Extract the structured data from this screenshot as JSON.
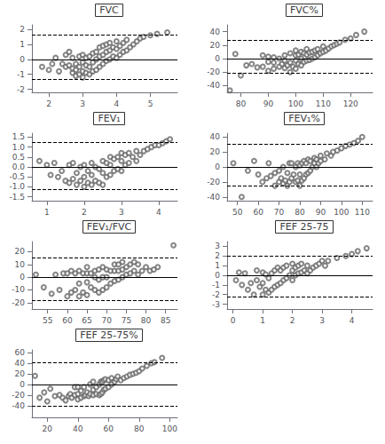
{
  "chart_data": [
    {
      "type": "scatter",
      "title": "FVC",
      "xlim": [
        1.5,
        5.8
      ],
      "ylim": [
        -2.2,
        2.3
      ],
      "xticks": [
        2,
        3,
        4,
        5
      ],
      "yticks": [
        -2,
        -1,
        0,
        1,
        2
      ],
      "color": "#666666",
      "marker": "circle",
      "grid": false,
      "reference_lines": [
        {
          "value": 0.0,
          "line_style": "solid",
          "color": "black"
        },
        {
          "value": 1.65,
          "line_style": "dashed",
          "color": "black"
        },
        {
          "value": -1.35,
          "line_style": "dashed",
          "color": "black"
        }
      ],
      "x": [
        1.8,
        2.0,
        2.1,
        2.2,
        2.3,
        2.4,
        2.5,
        2.5,
        2.6,
        2.6,
        2.7,
        2.7,
        2.7,
        2.8,
        2.8,
        2.8,
        2.9,
        2.9,
        2.9,
        3.0,
        3.0,
        3.0,
        3.0,
        3.1,
        3.1,
        3.1,
        3.2,
        3.2,
        3.2,
        3.3,
        3.3,
        3.3,
        3.4,
        3.4,
        3.4,
        3.5,
        3.5,
        3.5,
        3.6,
        3.6,
        3.6,
        3.7,
        3.7,
        3.7,
        3.8,
        3.8,
        3.8,
        3.9,
        3.9,
        4.0,
        4.0,
        4.0,
        4.1,
        4.1,
        4.2,
        4.2,
        4.3,
        4.3,
        4.4,
        4.5,
        4.6,
        4.7,
        4.8,
        5.0,
        5.2,
        5.5
      ],
      "values": [
        -0.5,
        -0.7,
        -0.3,
        0.1,
        -0.8,
        -0.3,
        -0.5,
        0.3,
        -0.4,
        0.5,
        -0.9,
        -0.6,
        0.1,
        -1.1,
        -0.7,
        -0.3,
        -1.0,
        -0.5,
        0.2,
        -1.2,
        -0.8,
        -0.2,
        0.3,
        -0.9,
        -0.4,
        0.1,
        -1.0,
        -0.5,
        0.2,
        -0.8,
        -0.2,
        0.4,
        -0.7,
        0.0,
        0.5,
        -0.5,
        0.2,
        0.8,
        -0.3,
        0.3,
        0.9,
        -0.1,
        0.5,
        1.0,
        0.0,
        0.6,
        1.1,
        0.2,
        0.8,
        0.1,
        0.7,
        1.2,
        0.3,
        0.9,
        0.5,
        1.1,
        0.6,
        1.3,
        0.8,
        1.0,
        1.2,
        1.4,
        1.5,
        1.6,
        1.7,
        1.8
      ]
    },
    {
      "type": "scatter",
      "title": "FVC%",
      "xlim": [
        75,
        128
      ],
      "ylim": [
        -50,
        50
      ],
      "xticks": [
        80,
        90,
        100,
        110,
        120
      ],
      "yticks": [
        -40,
        -20,
        0,
        20,
        40
      ],
      "color": "#666666",
      "marker": "circle",
      "grid": false,
      "reference_lines": [
        {
          "value": 0.0,
          "line_style": "solid",
          "color": "black"
        },
        {
          "value": 27.0,
          "line_style": "dashed",
          "color": "black"
        },
        {
          "value": -22.0,
          "line_style": "dashed",
          "color": "black"
        }
      ],
      "x": [
        76,
        78,
        80,
        82,
        84,
        86,
        88,
        88,
        90,
        90,
        90,
        92,
        92,
        92,
        94,
        94,
        95,
        96,
        96,
        96,
        97,
        98,
        98,
        98,
        99,
        100,
        100,
        100,
        100,
        101,
        101,
        102,
        102,
        102,
        103,
        103,
        104,
        104,
        104,
        105,
        105,
        106,
        106,
        107,
        107,
        108,
        108,
        109,
        110,
        110,
        111,
        112,
        113,
        114,
        115,
        116,
        118,
        120,
        122,
        125
      ],
      "values": [
        -47,
        7,
        -25,
        -10,
        -8,
        -13,
        -12,
        5,
        -18,
        -5,
        3,
        -15,
        -6,
        2,
        -12,
        0,
        -8,
        -14,
        -3,
        5,
        -10,
        -20,
        -6,
        8,
        -12,
        -15,
        -3,
        5,
        12,
        -8,
        6,
        -10,
        0,
        10,
        -5,
        8,
        -3,
        6,
        14,
        -2,
        9,
        0,
        10,
        2,
        12,
        5,
        14,
        8,
        10,
        18,
        12,
        15,
        18,
        20,
        22,
        24,
        28,
        30,
        35,
        40
      ]
    },
    {
      "type": "scatter",
      "title": "FEV₁",
      "xlim": [
        0.6,
        4.5
      ],
      "ylim": [
        -1.7,
        1.7
      ],
      "xticks": [
        1,
        2,
        3,
        4
      ],
      "yticks": [
        -1.5,
        {
          "value": -1.0,
          "label": "-1.0"
        },
        -0.5,
        {
          "value": 0.0,
          "label": "0.0"
        },
        0.5,
        {
          "value": 1.0,
          "label": "1.0"
        },
        1.5
      ],
      "color": "#666666",
      "marker": "circle",
      "grid": false,
      "reference_lines": [
        {
          "value": 0.0,
          "line_style": "solid",
          "color": "black"
        },
        {
          "value": 1.25,
          "line_style": "dashed",
          "color": "black"
        },
        {
          "value": -1.15,
          "line_style": "dashed",
          "color": "black"
        }
      ],
      "x": [
        0.8,
        1.0,
        1.1,
        1.2,
        1.3,
        1.4,
        1.5,
        1.6,
        1.6,
        1.7,
        1.7,
        1.8,
        1.8,
        1.9,
        1.9,
        2.0,
        2.0,
        2.0,
        2.1,
        2.1,
        2.2,
        2.2,
        2.2,
        2.3,
        2.3,
        2.4,
        2.4,
        2.5,
        2.5,
        2.5,
        2.6,
        2.6,
        2.7,
        2.7,
        2.7,
        2.8,
        2.8,
        2.9,
        2.9,
        3.0,
        3.0,
        3.0,
        3.1,
        3.1,
        3.2,
        3.2,
        3.3,
        3.4,
        3.4,
        3.5,
        3.6,
        3.7,
        3.8,
        3.9,
        4.0,
        4.1,
        4.2,
        4.3
      ],
      "values": [
        0.3,
        0.1,
        -0.4,
        0.2,
        -0.5,
        -0.2,
        -0.7,
        -0.8,
        0.1,
        -0.6,
        0.2,
        -0.9,
        -0.3,
        -0.7,
        0.0,
        -1.0,
        -0.5,
        0.1,
        -0.8,
        -0.2,
        -0.9,
        -0.4,
        0.2,
        -0.7,
        0.0,
        -0.8,
        -0.1,
        -0.9,
        -0.3,
        0.3,
        -0.5,
        0.2,
        -0.4,
        0.1,
        0.5,
        -0.2,
        0.4,
        -0.1,
        0.5,
        -0.2,
        0.3,
        0.7,
        0.1,
        0.6,
        0.2,
        0.7,
        0.5,
        0.3,
        0.8,
        0.6,
        0.8,
        0.9,
        1.0,
        1.1,
        1.1,
        1.2,
        1.3,
        1.4
      ]
    },
    {
      "type": "scatter",
      "title": "FEV₁%",
      "xlim": [
        45,
        115
      ],
      "ylim": [
        -45,
        45
      ],
      "xticks": [
        50,
        60,
        70,
        80,
        90,
        100,
        110
      ],
      "yticks": [
        -40,
        -20,
        0,
        20,
        40
      ],
      "color": "#666666",
      "marker": "circle",
      "grid": false,
      "reference_lines": [
        {
          "value": 0.0,
          "line_style": "solid",
          "color": "black"
        },
        {
          "value": 30.0,
          "line_style": "dashed",
          "color": "black"
        },
        {
          "value": -25.0,
          "line_style": "dashed",
          "color": "black"
        }
      ],
      "x": [
        48,
        52,
        55,
        58,
        60,
        62,
        64,
        65,
        66,
        68,
        68,
        70,
        70,
        71,
        72,
        72,
        73,
        74,
        74,
        75,
        75,
        76,
        76,
        77,
        78,
        78,
        79,
        79,
        80,
        80,
        80,
        81,
        81,
        82,
        82,
        83,
        83,
        84,
        84,
        85,
        85,
        86,
        87,
        87,
        88,
        88,
        89,
        90,
        90,
        92,
        93,
        95,
        96,
        98,
        100,
        102,
        104,
        106,
        108,
        110
      ],
      "values": [
        5,
        -40,
        -5,
        8,
        -10,
        -20,
        -15,
        5,
        -12,
        -25,
        -8,
        -20,
        -5,
        -15,
        -22,
        0,
        -18,
        -25,
        -8,
        -20,
        5,
        -15,
        5,
        -10,
        -20,
        0,
        -18,
        5,
        -25,
        -10,
        2,
        -18,
        5,
        -15,
        8,
        -10,
        5,
        -8,
        10,
        -5,
        8,
        0,
        5,
        12,
        0,
        10,
        5,
        8,
        15,
        10,
        18,
        15,
        20,
        22,
        25,
        28,
        30,
        32,
        35,
        40
      ]
    },
    {
      "type": "scatter",
      "title": "FEV₁/FVC",
      "xlim": [
        51,
        88
      ],
      "ylim": [
        -25,
        28
      ],
      "xticks": [
        55,
        60,
        65,
        70,
        75,
        80,
        85
      ],
      "yticks": [
        -20,
        -10,
        0,
        10,
        20
      ],
      "color": "#666666",
      "marker": "circle",
      "grid": false,
      "reference_lines": [
        {
          "value": 0.0,
          "line_style": "solid",
          "color": "black"
        },
        {
          "value": 15.0,
          "line_style": "dashed",
          "color": "black"
        },
        {
          "value": -18.0,
          "line_style": "dashed",
          "color": "black"
        }
      ],
      "x": [
        52,
        54,
        56,
        57,
        58,
        59,
        60,
        60,
        61,
        61,
        62,
        62,
        63,
        63,
        63,
        64,
        64,
        65,
        65,
        65,
        65,
        66,
        66,
        67,
        67,
        67,
        68,
        68,
        68,
        69,
        69,
        69,
        70,
        70,
        70,
        71,
        71,
        72,
        72,
        72,
        73,
        73,
        73,
        74,
        74,
        74,
        75,
        75,
        76,
        76,
        77,
        77,
        78,
        78,
        79,
        80,
        81,
        82,
        83,
        87
      ],
      "values": [
        2,
        -8,
        -13,
        2,
        -10,
        3,
        -15,
        3,
        -12,
        5,
        -10,
        3,
        -15,
        -5,
        5,
        -12,
        3,
        -14,
        -4,
        3,
        8,
        -8,
        3,
        -10,
        0,
        5,
        -12,
        -2,
        6,
        -10,
        0,
        8,
        -8,
        0,
        6,
        -5,
        5,
        -3,
        5,
        10,
        -2,
        5,
        10,
        0,
        6,
        12,
        2,
        8,
        3,
        10,
        5,
        12,
        2,
        10,
        5,
        8,
        5,
        6,
        8,
        25
      ]
    },
    {
      "type": "scatter",
      "title": "FEF 25-75",
      "xlim": [
        -0.2,
        4.7
      ],
      "ylim": [
        -3.5,
        3.5
      ],
      "xticks": [
        0,
        1,
        2,
        3,
        4
      ],
      "yticks": [
        -3,
        -2,
        -1,
        0,
        1,
        2,
        3
      ],
      "color": "#666666",
      "marker": "circle",
      "grid": false,
      "reference_lines": [
        {
          "value": 0.0,
          "line_style": "solid",
          "color": "black"
        },
        {
          "value": 2.0,
          "line_style": "dashed",
          "color": "black"
        },
        {
          "value": -2.2,
          "line_style": "dashed",
          "color": "black"
        }
      ],
      "x": [
        0.1,
        0.2,
        0.3,
        0.4,
        0.5,
        0.6,
        0.7,
        0.8,
        0.8,
        0.9,
        1.0,
        1.0,
        1.0,
        1.1,
        1.1,
        1.2,
        1.2,
        1.3,
        1.3,
        1.4,
        1.4,
        1.5,
        1.5,
        1.6,
        1.6,
        1.7,
        1.7,
        1.8,
        1.8,
        1.9,
        2.0,
        2.0,
        2.0,
        2.1,
        2.1,
        2.2,
        2.2,
        2.3,
        2.3,
        2.4,
        2.5,
        2.5,
        2.6,
        2.7,
        2.8,
        2.9,
        3.0,
        3.1,
        3.2,
        3.5,
        3.8,
        4.0,
        4.2,
        4.5
      ],
      "values": [
        -0.5,
        0.3,
        -1.0,
        0.2,
        -1.5,
        -0.8,
        -2.0,
        -0.5,
        0.5,
        -1.2,
        -2.0,
        -0.8,
        0.3,
        -1.5,
        0.1,
        -1.8,
        -0.3,
        -1.5,
        0.2,
        -1.2,
        0.5,
        -1.0,
        0.8,
        -0.8,
        0.5,
        -0.5,
        0.8,
        -0.3,
        1.0,
        0.0,
        -0.5,
        0.5,
        1.2,
        0.0,
        0.8,
        0.2,
        1.0,
        0.3,
        1.2,
        0.5,
        0.2,
        1.0,
        0.5,
        0.8,
        1.0,
        1.2,
        1.5,
        1.0,
        1.5,
        1.8,
        2.0,
        2.2,
        2.5,
        2.8
      ]
    },
    {
      "type": "scatter",
      "title": "FEF 25-75%",
      "xlim": [
        10,
        105
      ],
      "ylim": [
        -62,
        65
      ],
      "xticks": [
        20,
        40,
        60,
        80,
        100
      ],
      "yticks": [
        -40,
        -20,
        0,
        20,
        40,
        60
      ],
      "color": "#666666",
      "marker": "circle",
      "grid": false,
      "reference_lines": [
        {
          "value": 0.0,
          "line_style": "solid",
          "color": "black"
        },
        {
          "value": 42.0,
          "line_style": "dashed",
          "color": "black"
        },
        {
          "value": -40.0,
          "line_style": "dashed",
          "color": "black"
        }
      ],
      "x": [
        12,
        15,
        18,
        20,
        22,
        25,
        28,
        30,
        32,
        34,
        35,
        36,
        38,
        38,
        40,
        40,
        40,
        42,
        42,
        44,
        44,
        45,
        46,
        47,
        48,
        48,
        50,
        50,
        50,
        52,
        52,
        54,
        54,
        55,
        55,
        56,
        56,
        57,
        57,
        58,
        58,
        60,
        60,
        62,
        62,
        64,
        65,
        66,
        68,
        70,
        72,
        74,
        76,
        78,
        80,
        82,
        85,
        88,
        90,
        95
      ],
      "values": [
        16,
        -25,
        -15,
        -32,
        -8,
        -22,
        -20,
        -25,
        -30,
        -22,
        -18,
        -25,
        -20,
        -5,
        -28,
        -18,
        -5,
        -25,
        -12,
        -22,
        -5,
        -20,
        -15,
        -22,
        -18,
        0,
        -20,
        -10,
        5,
        -18,
        -5,
        -20,
        0,
        -18,
        5,
        -15,
        5,
        -10,
        8,
        -8,
        10,
        -5,
        8,
        0,
        12,
        5,
        10,
        15,
        8,
        12,
        15,
        18,
        20,
        22,
        25,
        30,
        35,
        40,
        42,
        50
      ]
    }
  ]
}
